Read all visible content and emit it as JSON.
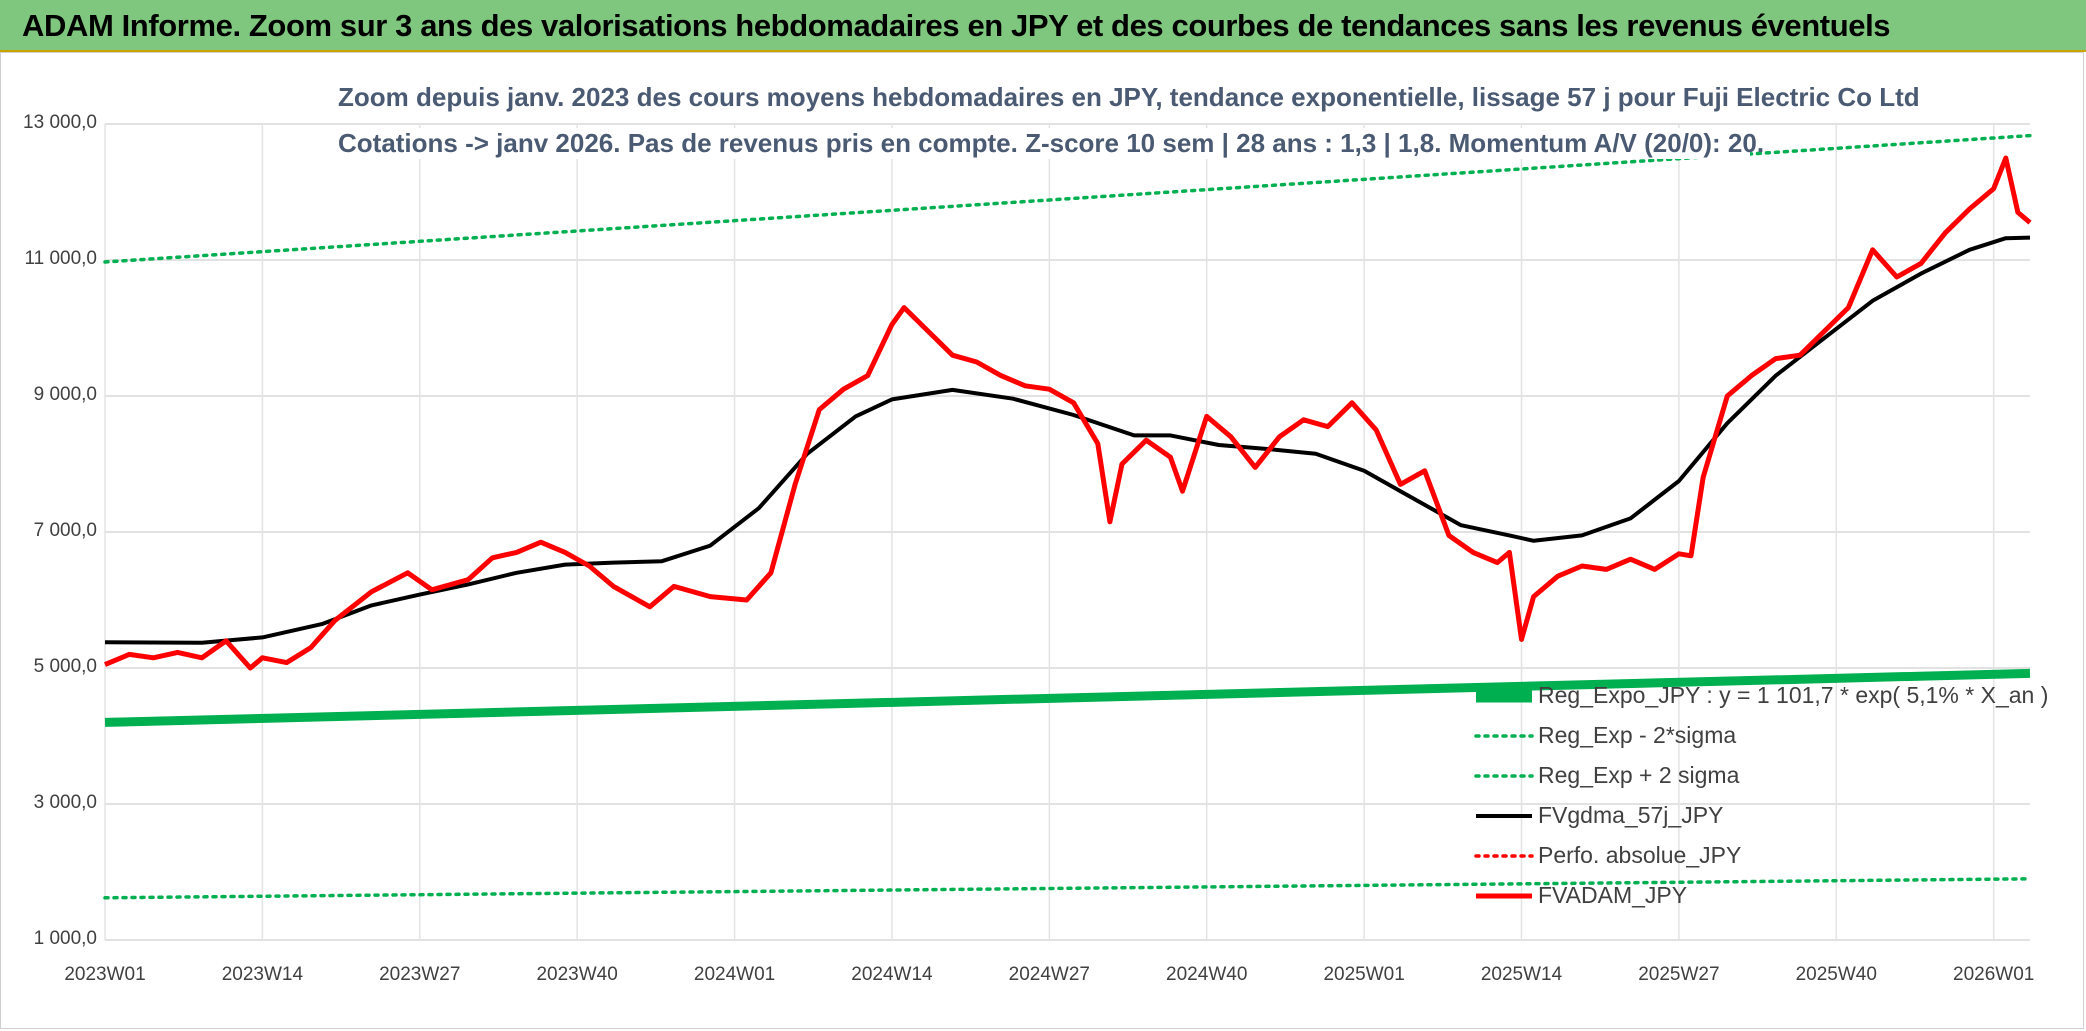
{
  "banner": {
    "title": "ADAM Informe. Zoom sur 3 ans des valorisations hebdomadaires en JPY et des courbes de tendances sans les revenus éventuels"
  },
  "chart_data": {
    "type": "line",
    "title_line1": "Zoom depuis janv. 2023 des cours moyens hebdomadaires en JPY, tendance exponentielle, lissage 57 j pour Fuji Electric Co Ltd",
    "title_line2": "Cotations -> janv 2026. Pas de revenus pris en compte. Z-score 10 sem | 28 ans : 1,3 | 1,8. Momentum A/V (20/0): 20.",
    "xlabel": "",
    "ylabel": "",
    "ylim": [
      1000,
      13000
    ],
    "y_ticks": [
      {
        "value": 13000,
        "label": "13 000,0"
      },
      {
        "value": 11000,
        "label": "11 000,0"
      },
      {
        "value": 9000,
        "label": "9 000,0"
      },
      {
        "value": 7000,
        "label": "7 000,0"
      },
      {
        "value": 5000,
        "label": "5 000,0"
      },
      {
        "value": 3000,
        "label": "3 000,0"
      },
      {
        "value": 1000,
        "label": "1 000,0"
      }
    ],
    "x_range": [
      0,
      159
    ],
    "x_ticks": [
      {
        "index": 0,
        "label": "2023W01"
      },
      {
        "index": 13,
        "label": "2023W14"
      },
      {
        "index": 26,
        "label": "2023W27"
      },
      {
        "index": 39,
        "label": "2023W40"
      },
      {
        "index": 52,
        "label": "2024W01"
      },
      {
        "index": 65,
        "label": "2024W14"
      },
      {
        "index": 78,
        "label": "2024W27"
      },
      {
        "index": 91,
        "label": "2024W40"
      },
      {
        "index": 104,
        "label": "2025W01"
      },
      {
        "index": 117,
        "label": "2025W14"
      },
      {
        "index": 130,
        "label": "2025W27"
      },
      {
        "index": 143,
        "label": "2025W40"
      },
      {
        "index": 156,
        "label": "2026W01"
      }
    ],
    "grid": true,
    "legend_position": "bottom-right",
    "series": [
      {
        "name": "Reg_Expo_JPY : y = 1 101,7 * exp( 5,1% *  X_an )",
        "style": "thick-solid",
        "color": "#00b050",
        "x": [
          0,
          159
        ],
        "values": [
          4200,
          4920
        ]
      },
      {
        "name": "Reg_Exp - 2*sigma",
        "style": "dotted",
        "color": "#00b050",
        "x": [
          0,
          159
        ],
        "values": [
          1620,
          1900
        ]
      },
      {
        "name": "Reg_Exp + 2 sigma",
        "style": "dotted",
        "color": "#00b050",
        "x": [
          0,
          159
        ],
        "values": [
          10970,
          12830
        ]
      },
      {
        "name": "FVgdma_57j_JPY",
        "style": "solid",
        "color": "#000000",
        "x": [
          0,
          8,
          13,
          18,
          22,
          26,
          30,
          34,
          38,
          42,
          46,
          50,
          54,
          58,
          62,
          65,
          70,
          75,
          80,
          85,
          88,
          92,
          96,
          100,
          104,
          108,
          112,
          116,
          118,
          122,
          126,
          130,
          134,
          138,
          142,
          146,
          150,
          154,
          157,
          159
        ],
        "values": [
          5380,
          5370,
          5450,
          5650,
          5920,
          6080,
          6230,
          6400,
          6520,
          6550,
          6570,
          6800,
          7350,
          8150,
          8700,
          8950,
          9090,
          8960,
          8720,
          8420,
          8420,
          8280,
          8220,
          8150,
          7900,
          7500,
          7100,
          6950,
          6870,
          6950,
          7200,
          7750,
          8600,
          9300,
          9850,
          10400,
          10800,
          11150,
          11320,
          11330
        ]
      },
      {
        "name": "Perfo. absolue_JPY",
        "style": "dotted",
        "color": "#ff0000",
        "x": [],
        "values": []
      },
      {
        "name": "FVADAM_JPY",
        "style": "thick-solid",
        "color": "#ff0000",
        "x": [
          0,
          2,
          4,
          6,
          8,
          10,
          12,
          13,
          15,
          17,
          19,
          22,
          25,
          27,
          30,
          32,
          34,
          36,
          38,
          40,
          42,
          45,
          47,
          50,
          53,
          55,
          57,
          59,
          61,
          63,
          65,
          66,
          68,
          70,
          72,
          74,
          76,
          78,
          80,
          82,
          83,
          84,
          86,
          88,
          89,
          91,
          93,
          95,
          97,
          99,
          101,
          103,
          105,
          107,
          109,
          111,
          113,
          115,
          116,
          117,
          118,
          120,
          122,
          124,
          126,
          128,
          130,
          131,
          132,
          134,
          136,
          138,
          140,
          142,
          144,
          146,
          148,
          150,
          152,
          154,
          156,
          157,
          158,
          159
        ],
        "values": [
          5050,
          5200,
          5150,
          5230,
          5150,
          5400,
          5000,
          5150,
          5080,
          5300,
          5700,
          6120,
          6400,
          6150,
          6300,
          6620,
          6700,
          6850,
          6700,
          6500,
          6200,
          5900,
          6200,
          6050,
          6000,
          6400,
          7700,
          8800,
          9100,
          9300,
          10050,
          10300,
          9950,
          9600,
          9500,
          9300,
          9150,
          9100,
          8900,
          8300,
          7150,
          8000,
          8350,
          8100,
          7600,
          8700,
          8400,
          7950,
          8400,
          8650,
          8550,
          8900,
          8500,
          7700,
          7900,
          6950,
          6700,
          6550,
          6700,
          5420,
          6050,
          6350,
          6500,
          6450,
          6600,
          6450,
          6680,
          6650,
          7800,
          9000,
          9300,
          9550,
          9600,
          9950,
          10300,
          11150,
          10750,
          10950,
          11400,
          11750,
          12050,
          12500,
          11700,
          11550
        ]
      }
    ]
  }
}
